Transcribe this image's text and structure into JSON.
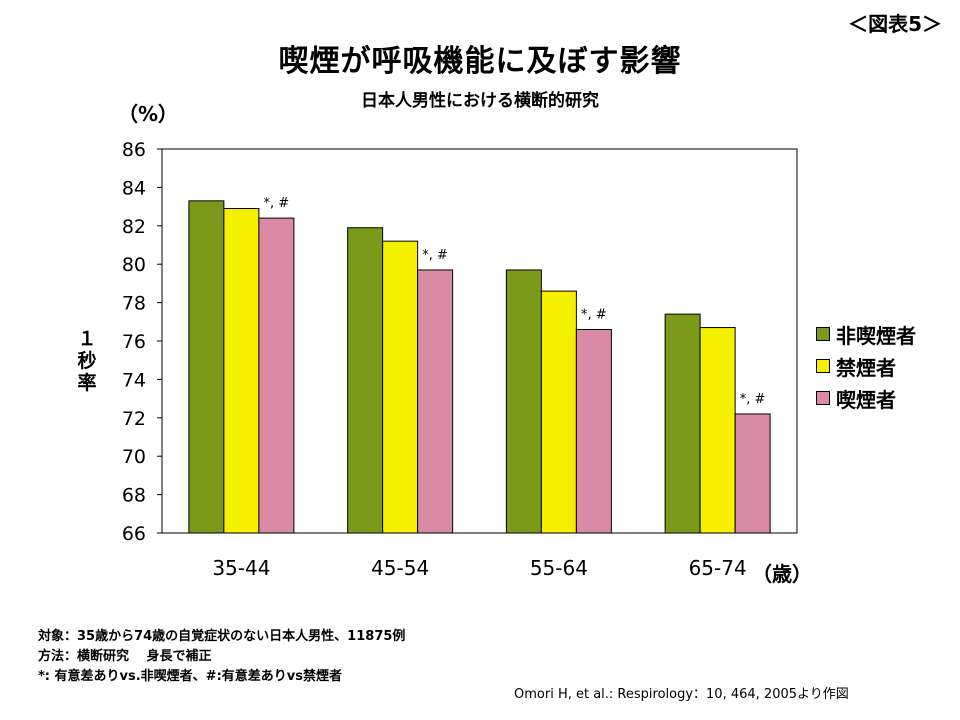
{
  "figure_label": "＜図表5＞",
  "title": "喫煙が呼吸機能に及ぼす影響",
  "subtitle": "日本人男性における横断的研究",
  "y_unit": "（%）",
  "y_label_chars": [
    "１",
    "秒",
    "率"
  ],
  "x_unit": "（歳）",
  "notes": [
    "対象：35歳から74歳の自覚症状のない日本人男性、11875例",
    "方法：横断研究　 身長で補正",
    "*: 有意差ありvs.非喫煙者、#:有意差ありvs禁煙者"
  ],
  "citation": "Omori H, et al.: Respirology：10, 464, 2005より作図",
  "chart_data": {
    "type": "bar",
    "categories": [
      "35-44",
      "45-54",
      "55-64",
      "65-74"
    ],
    "series": [
      {
        "name": "非喫煙者",
        "values": [
          83.3,
          81.9,
          79.7,
          77.4
        ],
        "color": "#7a9a1a"
      },
      {
        "name": "禁煙者",
        "values": [
          82.9,
          81.2,
          78.6,
          76.7
        ],
        "color": "#f5f000"
      },
      {
        "name": "喫煙者",
        "values": [
          82.4,
          79.7,
          76.6,
          72.2
        ],
        "color": "#d98aa5"
      }
    ],
    "annotations": [
      "*, #",
      "*, #",
      "*, #",
      "*, #"
    ],
    "ylim": [
      66,
      86
    ],
    "yticks": [
      "66",
      "68",
      "70",
      "72",
      "74",
      "76",
      "78",
      "80",
      "82",
      "84",
      "86"
    ],
    "legend_position": "right",
    "grid": false
  }
}
